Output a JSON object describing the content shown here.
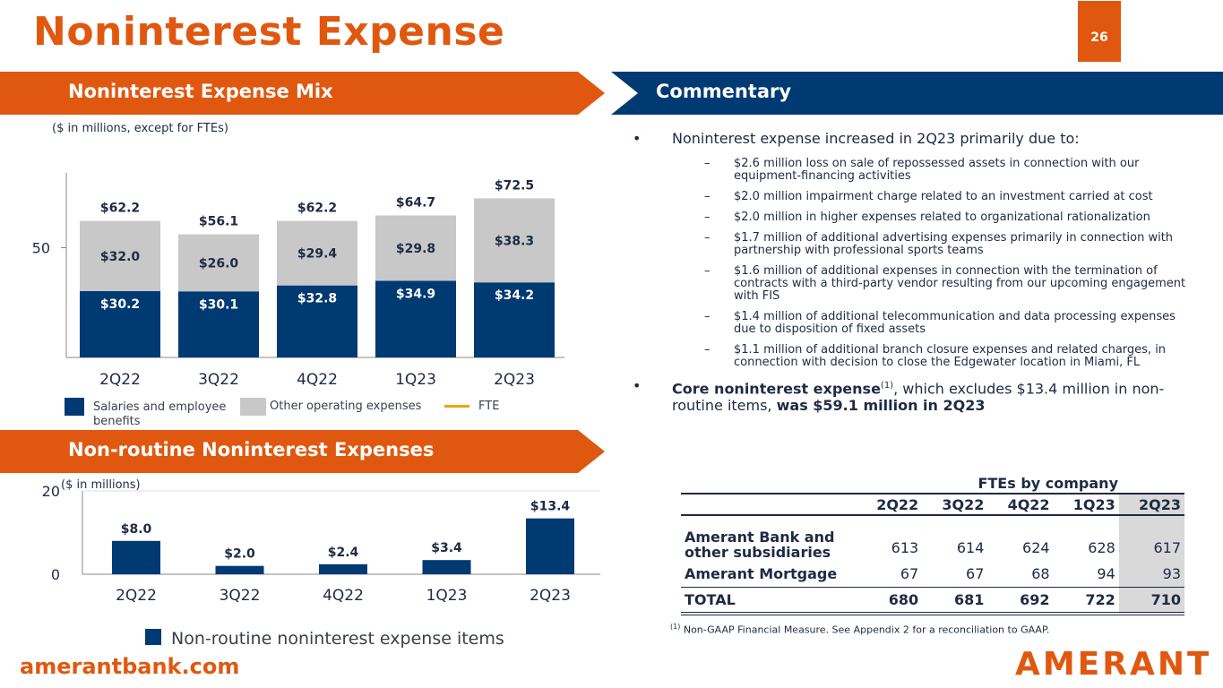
{
  "page": {
    "title": "Noninterest Expense",
    "page_number": "26",
    "website": "amerantbank.com",
    "logo_text": "AMERANT"
  },
  "colors": {
    "orange": "#e0580f",
    "navy": "#003a73",
    "gray": "#c8c8c8",
    "fte": "#f0a500"
  },
  "section_mix": {
    "title": "Noninterest Expense Mix",
    "note": "($ in millions, except for FTEs)"
  },
  "section_commentary": {
    "title": "Commentary"
  },
  "section_nonroutine": {
    "title": "Non-routine Noninterest Expenses",
    "note": "($ in millions)"
  },
  "chart_data": [
    {
      "type": "bar",
      "stacked": true,
      "title": "Noninterest Expense Mix",
      "categories": [
        "2Q22",
        "3Q22",
        "4Q22",
        "1Q23",
        "2Q23"
      ],
      "series": [
        {
          "name": "Salaries and employee benefits",
          "values": [
            30.2,
            30.1,
            32.8,
            34.9,
            34.2
          ],
          "labels": [
            "$30.2",
            "$30.1",
            "$32.8",
            "$34.9",
            "$34.2"
          ]
        },
        {
          "name": "Other operating expenses",
          "values": [
            32.0,
            26.0,
            29.4,
            29.8,
            38.3
          ],
          "labels": [
            "$32.0",
            "$26.0",
            "$29.4",
            "$29.8",
            "$38.3"
          ]
        }
      ],
      "totals": [
        "$62.2",
        "$56.1",
        "$62.2",
        "$64.7",
        "$72.5"
      ],
      "legend": [
        "Salaries and employee benefits",
        "Other operating expenses",
        "FTE"
      ],
      "y_tick": "50",
      "ylim": [
        0,
        80
      ]
    },
    {
      "type": "bar",
      "title": "Non-routine Noninterest Expenses",
      "categories": [
        "2Q22",
        "3Q22",
        "4Q22",
        "1Q23",
        "2Q23"
      ],
      "series": [
        {
          "name": "Non-routine noninterest expense items",
          "values": [
            8.0,
            2.0,
            2.4,
            3.4,
            13.4
          ],
          "labels": [
            "$8.0",
            "$2.0",
            "$2.4",
            "$3.4",
            "$13.4"
          ]
        }
      ],
      "y_ticks": [
        "20",
        "0"
      ],
      "ylim": [
        0,
        20
      ]
    }
  ],
  "commentary": {
    "main_bullet": "Noninterest expense increased in 2Q23 primarily due to:",
    "sub_items": [
      "$2.6 million loss on sale of repossessed assets in connection with our equipment-financing activities",
      "$2.0 million impairment charge related to an investment carried at cost",
      "$2.0 million in higher expenses related to organizational rationalization",
      "$1.7 million of additional advertising expenses primarily in connection with partnership with professional sports teams",
      "$1.6 million of additional expenses in connection with the termination of contracts with a third-party vendor resulting from our upcoming engagement with FIS",
      "$1.4 million of additional telecommunication and data processing expenses due to disposition of fixed assets",
      "$1.1 million of additional branch closure expenses and related charges, in connection with decision to close the Edgewater location in Miami, FL"
    ],
    "core_bold": "Core noninterest expense",
    "core_sup": "(1)",
    "core_mid": ", which excludes $13.4 million in non-routine items, ",
    "core_end": "was $59.1 million in 2Q23"
  },
  "fte_table": {
    "title": "FTEs by company",
    "headers": [
      "2Q22",
      "3Q22",
      "4Q22",
      "1Q23",
      "2Q23"
    ],
    "rows": [
      {
        "label": "Amerant Bank and other subsidiaries",
        "values": [
          "613",
          "614",
          "624",
          "628",
          "617"
        ]
      },
      {
        "label": "Amerant Mortgage",
        "values": [
          "67",
          "67",
          "68",
          "94",
          "93"
        ]
      },
      {
        "label": "TOTAL",
        "values": [
          "680",
          "681",
          "692",
          "722",
          "710"
        ]
      }
    ]
  },
  "footnote": {
    "sup": "(1)",
    "text": " Non-GAAP Financial Measure. See Appendix 2 for a reconciliation to GAAP."
  }
}
